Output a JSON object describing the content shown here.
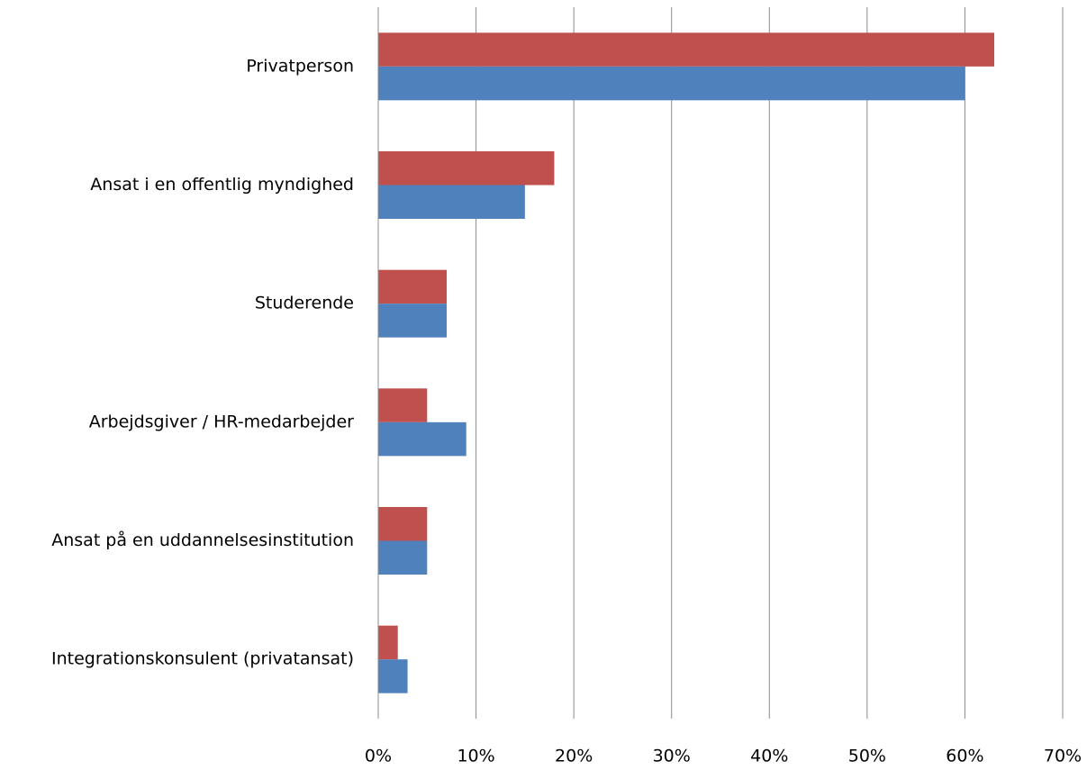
{
  "chart_data": {
    "type": "hbar",
    "categories": [
      "Privatperson",
      "Ansat i en offentlig myndighed",
      "Studerende",
      "Arbejdsgiver / HR-medarbejder",
      "Ansat på en uddannelsesinstitution",
      "Integrationskonsulent (privatansat)"
    ],
    "series": [
      {
        "color": "#c0504d",
        "values": [
          63,
          18,
          7,
          5,
          5,
          2
        ]
      },
      {
        "color": "#4f81bd",
        "values": [
          60,
          15,
          7,
          9,
          5,
          3
        ]
      }
    ],
    "xlim": [
      0,
      70
    ],
    "xticks": [
      {
        "value": 0,
        "label": "0%"
      },
      {
        "value": 10,
        "label": "10%"
      },
      {
        "value": 20,
        "label": "20%"
      },
      {
        "value": 30,
        "label": "30%"
      },
      {
        "value": 40,
        "label": "40%"
      },
      {
        "value": 50,
        "label": "50%"
      },
      {
        "value": 60,
        "label": "60%"
      },
      {
        "value": 70,
        "label": "70%"
      }
    ],
    "grid": true
  }
}
